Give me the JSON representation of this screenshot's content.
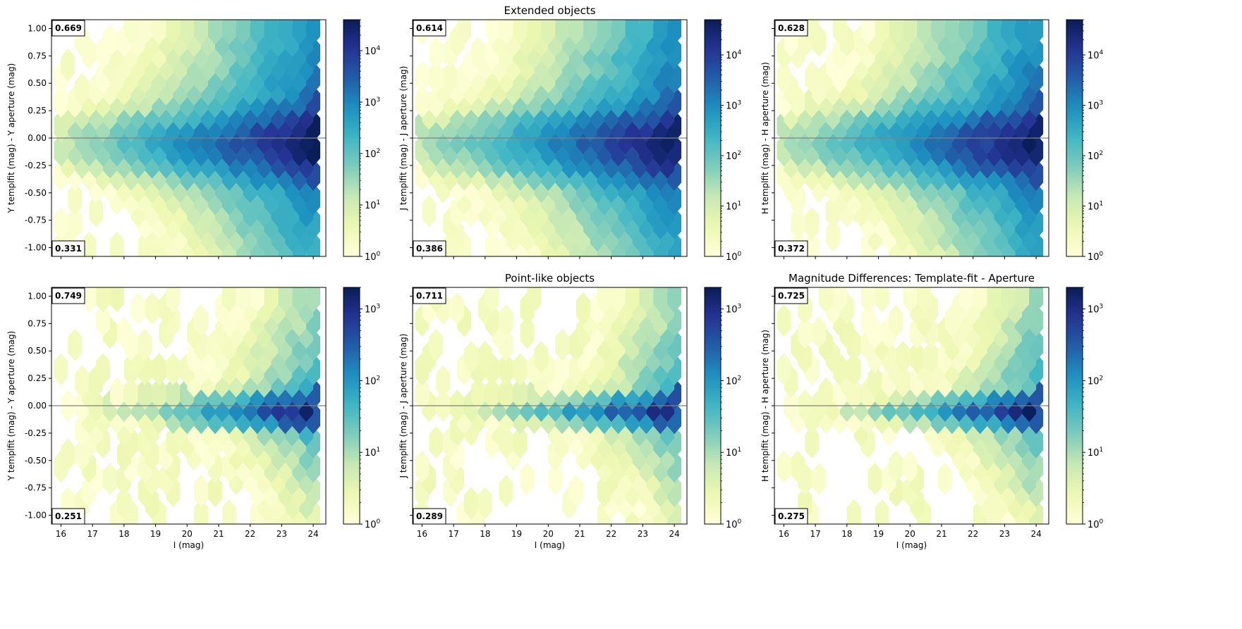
{
  "colormap": [
    "#ffffd9",
    "#edf8b1",
    "#c7e9b4",
    "#7fcdbb",
    "#41b6c4",
    "#1d91c0",
    "#225ea8",
    "#253494",
    "#081d58"
  ],
  "axes_line_color": "#808080",
  "chart_data": [
    {
      "type": "heatmap",
      "subtype": "hexbin",
      "title": "",
      "xlabel": "",
      "ylabel": "Y templfit (mag) - Y aperture (mag)",
      "xlim": [
        15.7,
        24.4
      ],
      "ylim": [
        -1.08,
        1.08
      ],
      "xticks": [
        "16",
        "17",
        "18",
        "19",
        "20",
        "21",
        "22",
        "23",
        "24"
      ],
      "yticks": [
        "1.00",
        "0.75",
        "0.50",
        "0.25",
        "0.00",
        "-0.25",
        "-0.50",
        "-0.75",
        "-1.00"
      ],
      "frac_above": "0.669",
      "frac_below": "0.331",
      "colorbar": {
        "scale": "log",
        "min": 1,
        "max": 40000,
        "ticks": [
          "10^0",
          "10^1",
          "10^2",
          "10^3",
          "10^4"
        ]
      },
      "peak_density": 40000,
      "core_halfwidth": 0.14,
      "halo_width": 0.3,
      "halo_weight": 0.08,
      "upper_asym": 1.6,
      "lower_asym": 1.0
    },
    {
      "type": "heatmap",
      "subtype": "hexbin",
      "title": "Extended objects",
      "xlabel": "",
      "ylabel": "J templfit (mag) - J aperture (mag)",
      "xlim": [
        15.7,
        24.4
      ],
      "ylim": [
        -1.08,
        1.08
      ],
      "xticks": [
        "16",
        "17",
        "18",
        "19",
        "20",
        "21",
        "22",
        "23",
        "24"
      ],
      "yticks": [
        "1.00",
        "0.75",
        "0.50",
        "0.25",
        "0.00",
        "-0.25",
        "-0.50",
        "-0.75",
        "-1.00"
      ],
      "frac_above": "0.614",
      "frac_below": "0.386",
      "colorbar": {
        "scale": "log",
        "min": 1,
        "max": 50000,
        "ticks": [
          "10^0",
          "10^1",
          "10^2",
          "10^3",
          "10^4"
        ]
      },
      "peak_density": 50000,
      "core_halfwidth": 0.14,
      "halo_width": 0.3,
      "halo_weight": 0.08,
      "upper_asym": 1.4,
      "lower_asym": 1.05
    },
    {
      "type": "heatmap",
      "subtype": "hexbin",
      "title": "",
      "xlabel": "",
      "ylabel": "H templfit (mag) - H aperture (mag)",
      "xlim": [
        15.7,
        24.4
      ],
      "ylim": [
        -1.08,
        1.08
      ],
      "xticks": [
        "16",
        "17",
        "18",
        "19",
        "20",
        "21",
        "22",
        "23",
        "24"
      ],
      "yticks": [
        "1.00",
        "0.75",
        "0.50",
        "0.25",
        "0.00",
        "-0.25",
        "-0.50",
        "-0.75",
        "-1.00"
      ],
      "frac_above": "0.628",
      "frac_below": "0.372",
      "colorbar": {
        "scale": "log",
        "min": 1,
        "max": 50000,
        "ticks": [
          "10^0",
          "10^1",
          "10^2",
          "10^3",
          "10^4"
        ]
      },
      "peak_density": 50000,
      "core_halfwidth": 0.14,
      "halo_width": 0.3,
      "halo_weight": 0.08,
      "upper_asym": 1.45,
      "lower_asym": 1.0
    },
    {
      "type": "heatmap",
      "subtype": "hexbin",
      "title": "",
      "xlabel": "I (mag)",
      "ylabel": "Y templfit (mag) - Y aperture (mag)",
      "xlim": [
        15.7,
        24.4
      ],
      "ylim": [
        -1.08,
        1.08
      ],
      "xticks": [
        "16",
        "17",
        "18",
        "19",
        "20",
        "21",
        "22",
        "23",
        "24"
      ],
      "yticks": [
        "1.00",
        "0.75",
        "0.50",
        "0.25",
        "0.00",
        "-0.25",
        "-0.50",
        "-0.75",
        "-1.00"
      ],
      "frac_above": "0.749",
      "frac_below": "0.251",
      "colorbar": {
        "scale": "log",
        "min": 1,
        "max": 2000,
        "ticks": [
          "10^0",
          "10^1",
          "10^2",
          "10^3"
        ]
      },
      "peak_density": 2000,
      "core_halfwidth": 0.07,
      "halo_width": 0.35,
      "halo_weight": 0.03,
      "upper_asym": 1.6,
      "lower_asym": 0.9
    },
    {
      "type": "heatmap",
      "subtype": "hexbin",
      "title": "Point-like objects",
      "xlabel": "I (mag)",
      "ylabel": "J templfit (mag) - J aperture (mag)",
      "xlim": [
        15.7,
        24.4
      ],
      "ylim": [
        -1.08,
        1.08
      ],
      "xticks": [
        "16",
        "17",
        "18",
        "19",
        "20",
        "21",
        "22",
        "23",
        "24"
      ],
      "yticks": [
        "1.00",
        "0.75",
        "0.50",
        "0.25",
        "0.00",
        "-0.25",
        "-0.50",
        "-0.75",
        "-1.00"
      ],
      "frac_above": "0.711",
      "frac_below": "0.289",
      "colorbar": {
        "scale": "log",
        "min": 1,
        "max": 2000,
        "ticks": [
          "10^0",
          "10^1",
          "10^2",
          "10^3"
        ]
      },
      "peak_density": 2000,
      "core_halfwidth": 0.06,
      "halo_width": 0.35,
      "halo_weight": 0.03,
      "upper_asym": 1.5,
      "lower_asym": 0.9
    },
    {
      "type": "heatmap",
      "subtype": "hexbin",
      "title": "Magnitude Differences: Template-fit - Aperture",
      "xlabel": "I (mag)",
      "ylabel": "H templfit (mag) - H aperture (mag)",
      "xlim": [
        15.7,
        24.4
      ],
      "ylim": [
        -1.08,
        1.08
      ],
      "xticks": [
        "16",
        "17",
        "18",
        "19",
        "20",
        "21",
        "22",
        "23",
        "24"
      ],
      "yticks": [
        "1.00",
        "0.75",
        "0.50",
        "0.25",
        "0.00",
        "-0.25",
        "-0.50",
        "-0.75",
        "-1.00"
      ],
      "frac_above": "0.725",
      "frac_below": "0.275",
      "colorbar": {
        "scale": "log",
        "min": 1,
        "max": 2000,
        "ticks": [
          "10^0",
          "10^1",
          "10^2",
          "10^3"
        ]
      },
      "peak_density": 2000,
      "core_halfwidth": 0.06,
      "halo_width": 0.35,
      "halo_weight": 0.03,
      "upper_asym": 1.5,
      "lower_asym": 0.9
    }
  ]
}
